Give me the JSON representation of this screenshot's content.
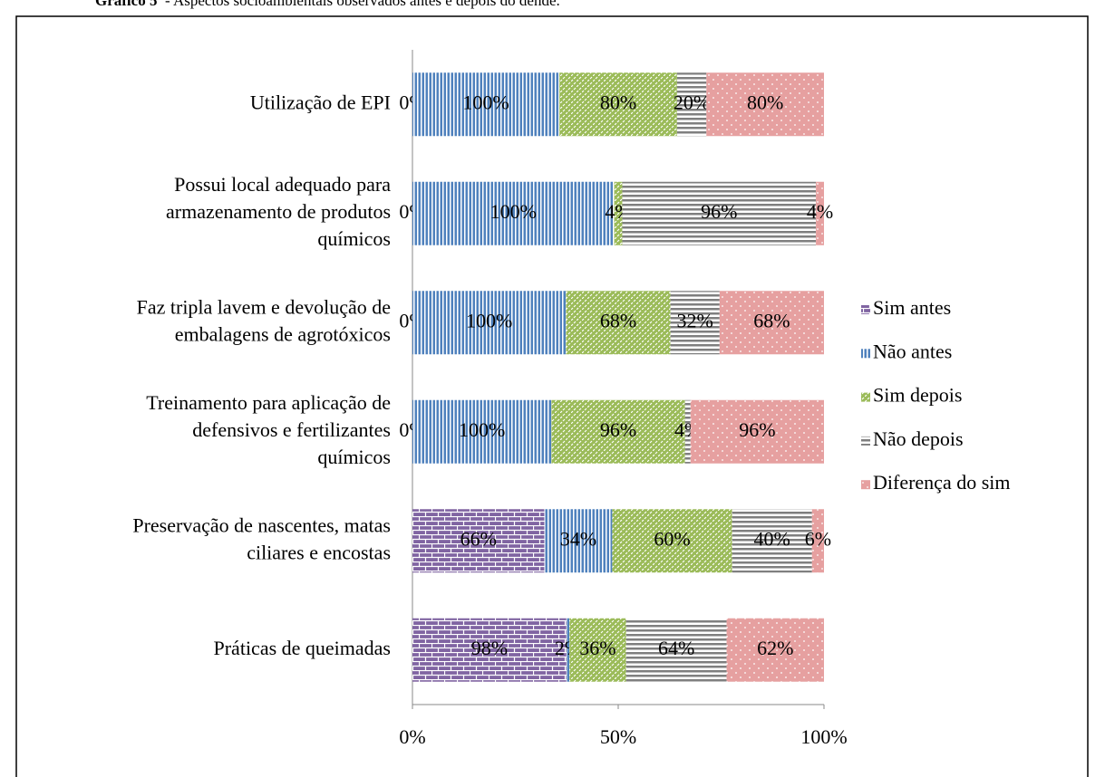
{
  "chart_data": {
    "type": "bar",
    "orientation": "horizontal",
    "stacking": "percent",
    "title_label": "Gráfico 5",
    "title": " - Aspectos socioambientais observados antes e depois do dendê.",
    "categories": [
      [
        "Utilização de EPI"
      ],
      [
        "Possui local adequado para",
        "armazenamento de produtos",
        "químicos"
      ],
      [
        "Faz tripla lavem e devolução de",
        "embalagens de agrotóxicos"
      ],
      [
        "Treinamento para aplicação de",
        "defensivos e fertilizantes",
        "químicos"
      ],
      [
        "Preservação de nascentes, matas",
        "ciliares e encostas"
      ],
      [
        "Práticas de queimadas"
      ]
    ],
    "series": [
      {
        "name": "Sim antes",
        "color": "#8064a2",
        "pattern": "brick",
        "values": [
          0,
          0,
          0,
          0,
          66,
          98
        ],
        "value_labels": [
          "0%",
          "0%",
          "0%",
          "0%",
          "66%",
          "98%"
        ]
      },
      {
        "name": "Não antes",
        "color": "#4f81bd",
        "pattern": "vertical",
        "values": [
          100,
          100,
          100,
          100,
          34,
          2
        ],
        "value_labels": [
          "100%",
          "100%",
          "100%",
          "100%",
          "34%",
          "2%"
        ]
      },
      {
        "name": "Sim depois",
        "color": "#9bbb59",
        "pattern": "diagonal",
        "values": [
          80,
          4,
          68,
          96,
          60,
          36
        ],
        "value_labels": [
          "80%",
          "4%",
          "68%",
          "96%",
          "60%",
          "36%"
        ]
      },
      {
        "name": "Não depois",
        "color": "#7f7f7f",
        "pattern": "horizontal",
        "values": [
          20,
          96,
          32,
          4,
          40,
          64
        ],
        "value_labels": [
          "20%",
          "96%",
          "32%",
          "4%",
          "40%",
          "64%"
        ]
      },
      {
        "name": "Diferença do sim",
        "color": "#e6a0a0",
        "pattern": "dots",
        "values": [
          80,
          4,
          68,
          96,
          6,
          62
        ],
        "value_labels": [
          "80%",
          "4%",
          "68%",
          "96%",
          "6%",
          "62%"
        ]
      }
    ],
    "xlim": [
      0,
      100
    ],
    "xticks": [
      {
        "value": 0,
        "label": "0%"
      },
      {
        "value": 50,
        "label": "50%"
      },
      {
        "value": 100,
        "label": "100%"
      }
    ],
    "legend": "right"
  }
}
